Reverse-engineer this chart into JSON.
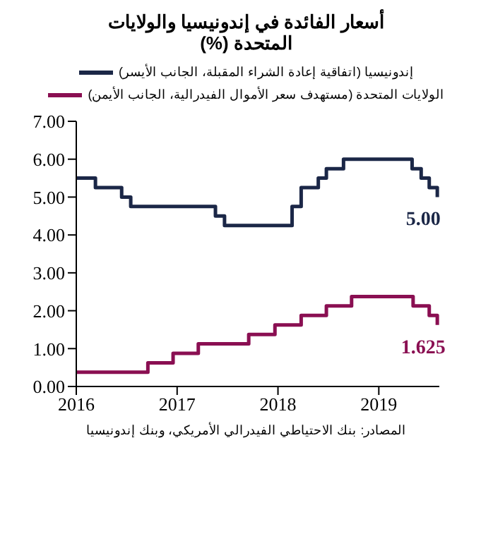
{
  "chart_data": {
    "type": "step",
    "title": "أسعار الفائدة في إندونيسيا والولايات المتحدة (%)",
    "legend": "top",
    "grid": false,
    "xlim": [
      2016,
      2019.6
    ],
    "xticks": [
      2016,
      2017,
      2018,
      2019
    ],
    "ylim": [
      0,
      7
    ],
    "yticks": [
      {
        "value": 0,
        "label": "0.00"
      },
      {
        "value": 1,
        "label": "1.00"
      },
      {
        "value": 2,
        "label": "2.00"
      },
      {
        "value": 3,
        "label": "3.00"
      },
      {
        "value": 4,
        "label": "4.00"
      },
      {
        "value": 5,
        "label": "5.00"
      },
      {
        "value": 6,
        "label": "6.00"
      },
      {
        "value": 7,
        "label": "7.00"
      }
    ],
    "series": [
      {
        "name": "إندونيسيا (اتفاقية إعادة الشراء المقبلة، الجانب الأيسر)",
        "color": "#1b2747",
        "x": [
          2016,
          2016.19,
          2016.45,
          2016.54,
          2017.38,
          2017.47,
          2018.14,
          2018.23,
          2018.4,
          2018.48,
          2018.65,
          2019.33,
          2019.42,
          2019.5,
          2019.58
        ],
        "values": [
          5.5,
          5.25,
          5,
          4.75,
          4.5,
          4.25,
          4.75,
          5.25,
          5.5,
          5.75,
          6,
          5.75,
          5.5,
          5.25,
          5
        ],
        "value_labels": [
          null,
          null,
          null,
          null,
          null,
          null,
          null,
          null,
          null,
          null,
          null,
          null,
          null,
          null,
          "5.00"
        ]
      },
      {
        "name": "الولايات المتحدة (مستهدف سعر الأموال الفيدرالية، الجانب الأيمن)",
        "color": "#8a0f52",
        "x": [
          2016,
          2016.71,
          2016.96,
          2017.21,
          2017.71,
          2017.97,
          2018.23,
          2018.48,
          2018.73,
          2019.34,
          2019.5,
          2019.58
        ],
        "values": [
          0.375,
          0.625,
          0.875,
          1.125,
          1.375,
          1.625,
          1.875,
          2.125,
          2.375,
          2.125,
          1.875,
          1.625
        ],
        "value_labels": [
          null,
          null,
          null,
          null,
          null,
          null,
          null,
          null,
          null,
          null,
          null,
          "1.625"
        ]
      }
    ],
    "annotations": [
      "المصادر: بنك الاحتياطي الفيدرالي الأمريكي، وبنك إندونيسيا"
    ]
  }
}
